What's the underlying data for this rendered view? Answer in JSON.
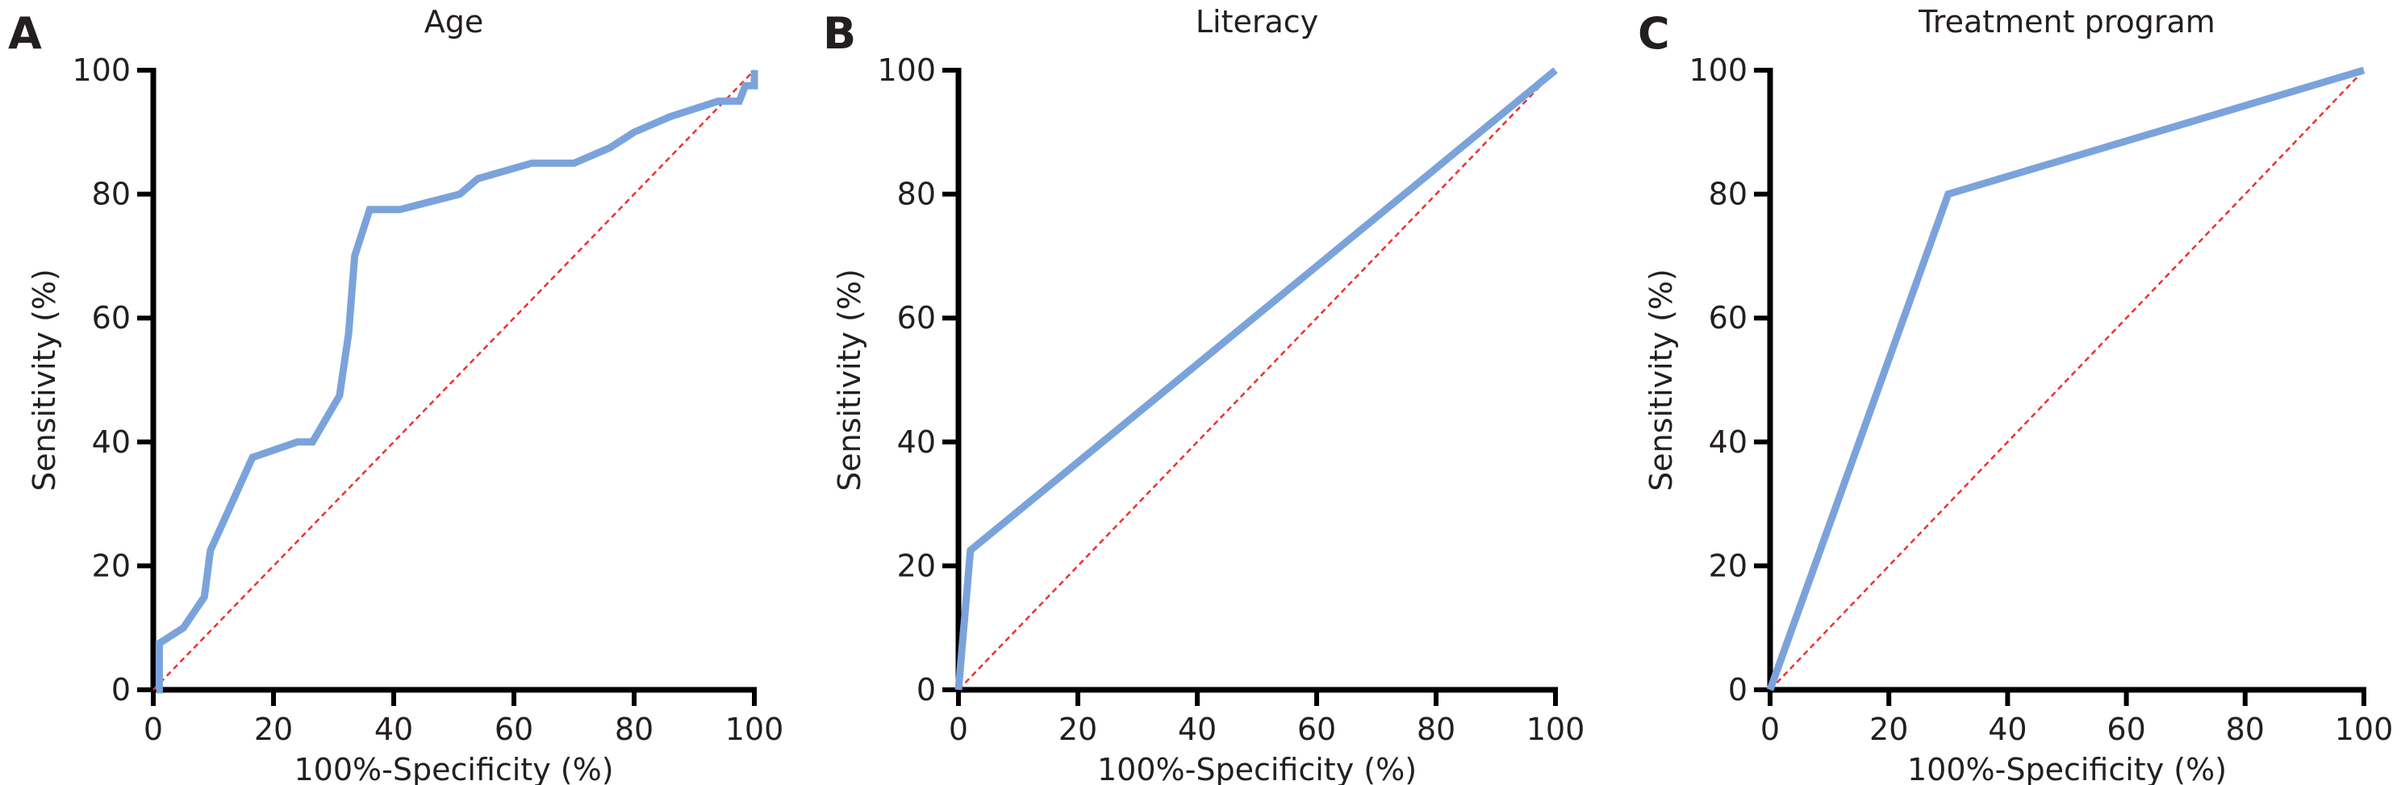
{
  "chart_data": [
    {
      "type": "line",
      "panel_label": "A",
      "title": "Age",
      "xlabel": "100%-Specificity (%)",
      "ylabel": "Sensitivity (%)",
      "xlim": [
        0,
        100
      ],
      "ylim": [
        0,
        100
      ],
      "xticks": [
        "0",
        "20",
        "40",
        "60",
        "80",
        "100"
      ],
      "yticks": [
        "0",
        "20",
        "40",
        "60",
        "80",
        "100"
      ],
      "grid": false,
      "series": [
        {
          "x": [
            0.5,
            1,
            1,
            5,
            8.5,
            9.5,
            13,
            16.5,
            24,
            26.5,
            31,
            32.5,
            33.5,
            36,
            41,
            51,
            54,
            63,
            70,
            76,
            80,
            86,
            94,
            97.5,
            98.5,
            100,
            100
          ],
          "y": [
            0,
            0,
            7.5,
            10,
            15,
            22.5,
            30,
            37.5,
            40,
            40,
            47.5,
            57.5,
            70,
            77.5,
            77.5,
            80,
            82.5,
            85,
            85,
            87.5,
            90,
            92.5,
            95,
            95,
            97.5,
            97.5,
            100
          ]
        }
      ],
      "reference_line": {
        "x": [
          0,
          100
        ],
        "y": [
          0,
          100
        ]
      }
    },
    {
      "type": "line",
      "panel_label": "B",
      "title": "Literacy",
      "xlabel": "100%-Specificity (%)",
      "ylabel": "Sensitivity (%)",
      "xlim": [
        0,
        100
      ],
      "ylim": [
        0,
        100
      ],
      "xticks": [
        "0",
        "20",
        "40",
        "60",
        "80",
        "100"
      ],
      "yticks": [
        "0",
        "20",
        "40",
        "60",
        "80",
        "100"
      ],
      "grid": false,
      "series": [
        {
          "x": [
            0,
            2,
            100
          ],
          "y": [
            0,
            22.5,
            100
          ]
        }
      ],
      "reference_line": {
        "x": [
          0,
          100
        ],
        "y": [
          0,
          100
        ]
      }
    },
    {
      "type": "line",
      "panel_label": "C",
      "title": "Treatment program",
      "xlabel": "100%-Specificity (%)",
      "ylabel": "Sensitivity (%)",
      "xlim": [
        0,
        100
      ],
      "ylim": [
        0,
        100
      ],
      "xticks": [
        "0",
        "20",
        "40",
        "60",
        "80",
        "100"
      ],
      "yticks": [
        "0",
        "20",
        "40",
        "60",
        "80",
        "100"
      ],
      "grid": false,
      "series": [
        {
          "x": [
            0,
            30,
            100
          ],
          "y": [
            0,
            80,
            100
          ]
        }
      ],
      "reference_line": {
        "x": [
          0,
          100
        ],
        "y": [
          0,
          100
        ]
      }
    }
  ],
  "colors": {
    "curve": "#7ba3db",
    "reference": "#f03030",
    "axis": "#000000"
  }
}
